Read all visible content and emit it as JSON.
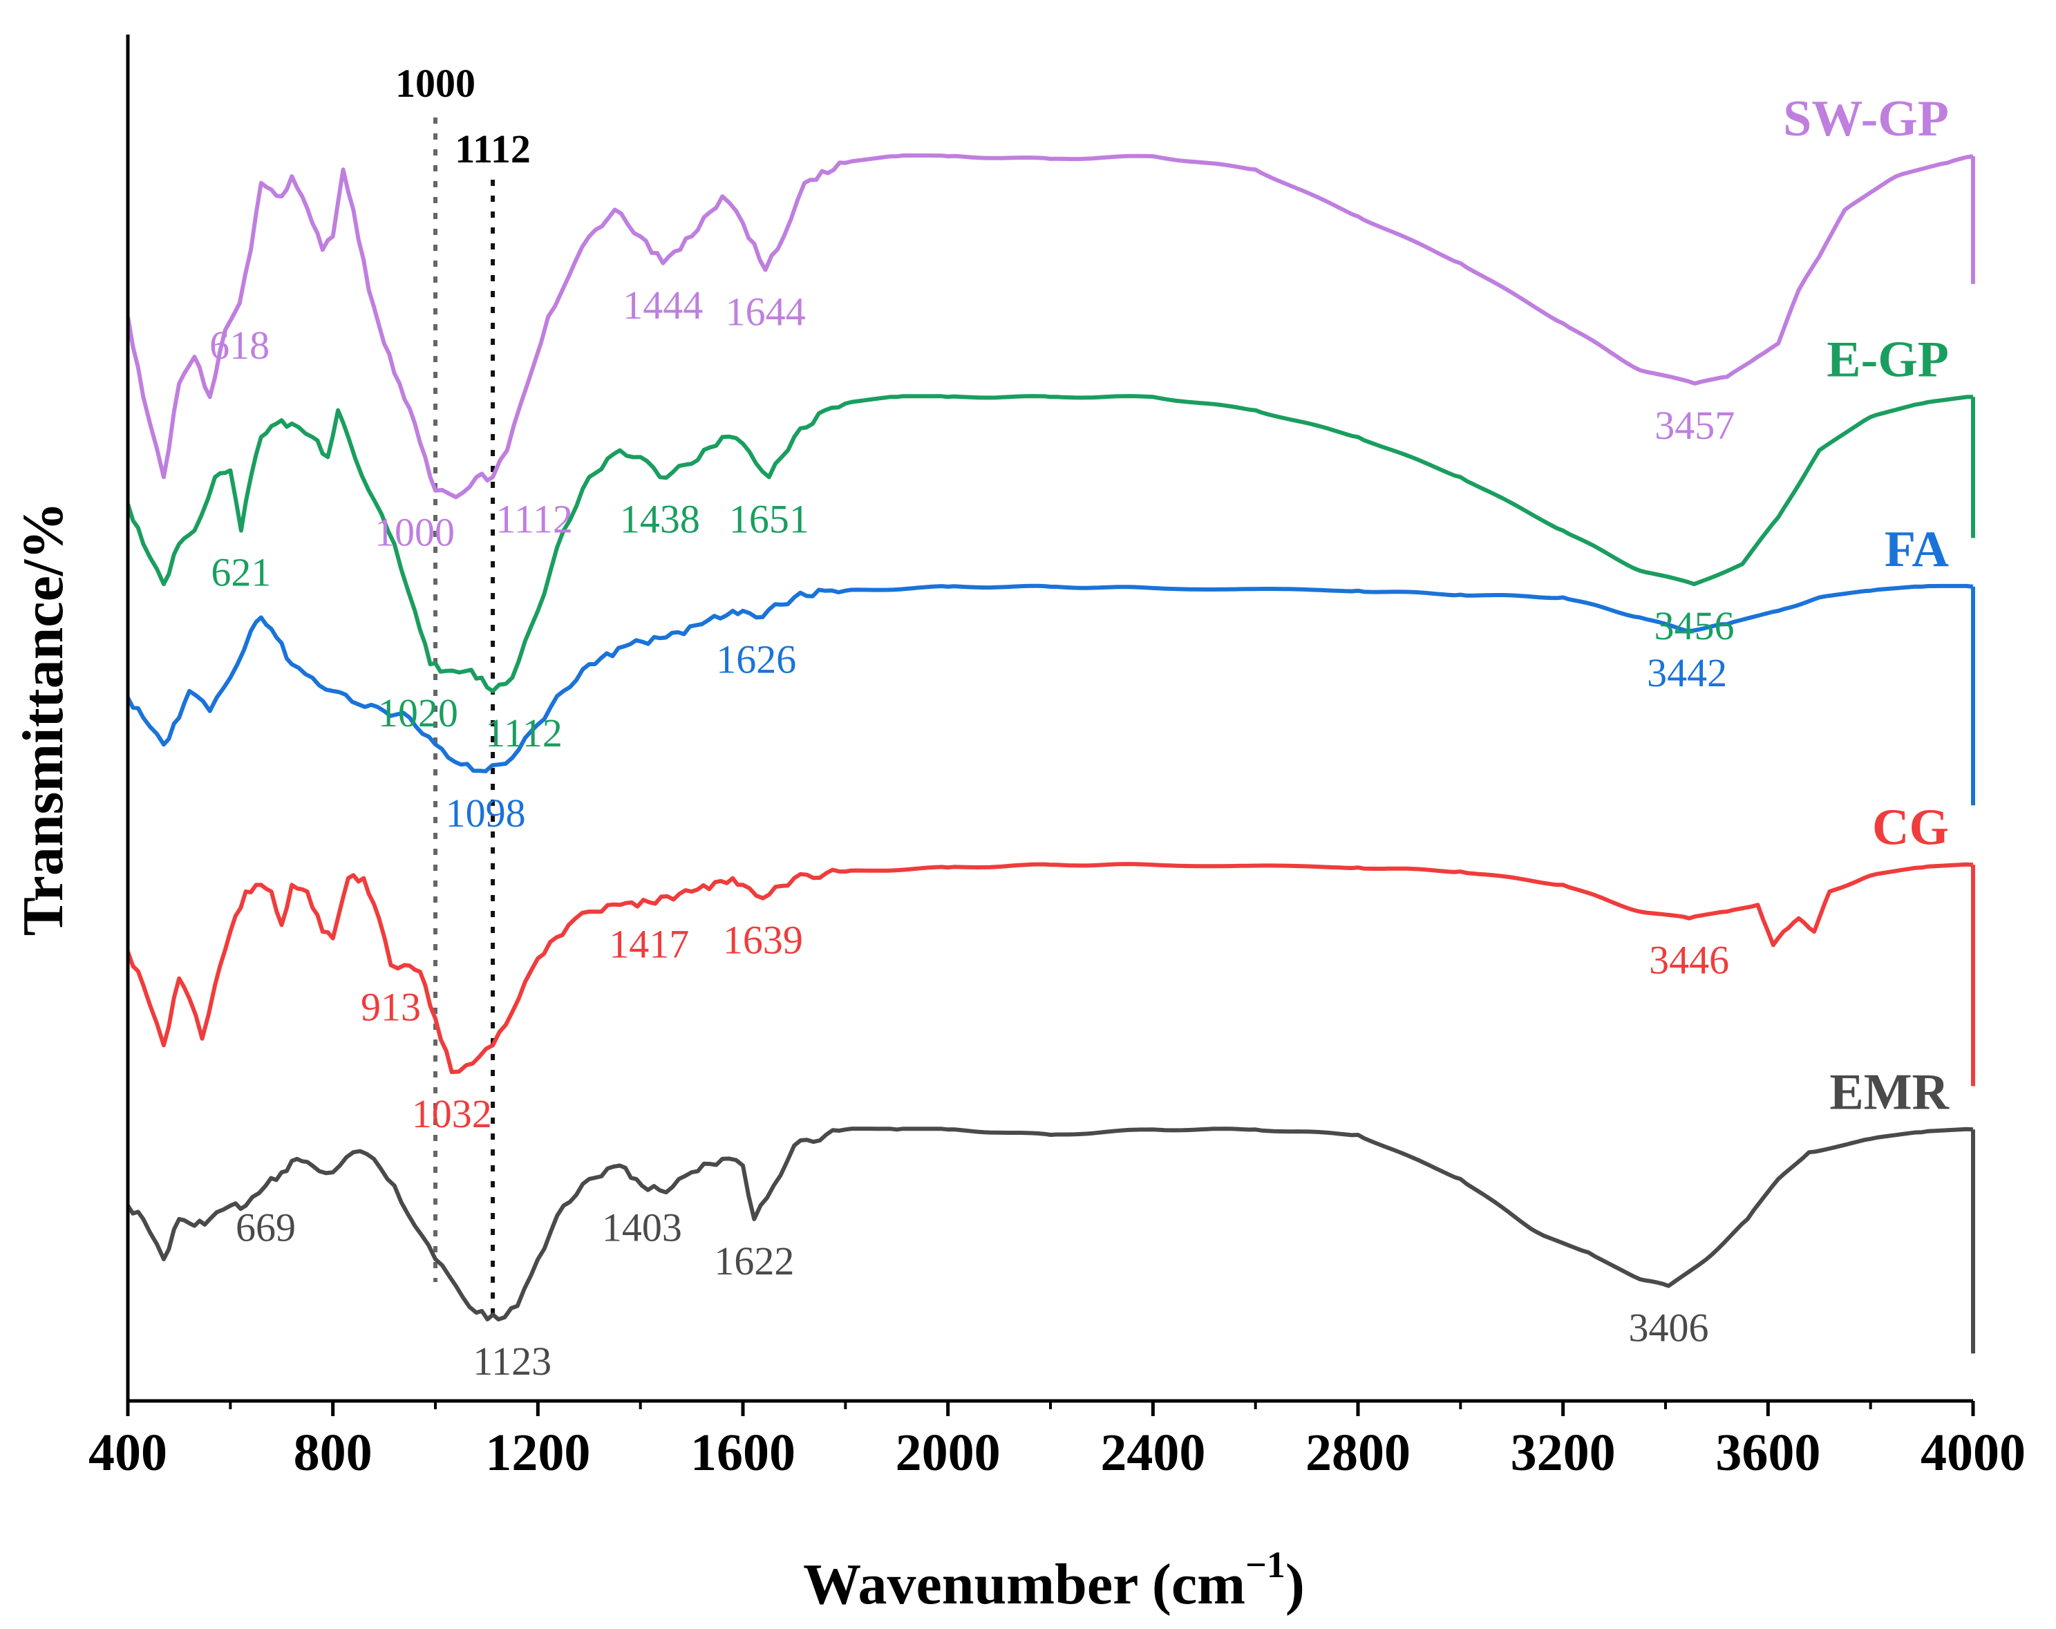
{
  "chart_data": {
    "type": "line",
    "title": "",
    "xlabel": "Wavenumber (cm",
    "xlabel_sup": "−1",
    "xlabel_close": ")",
    "ylabel": "Transmittance/%",
    "xlim": [
      400,
      4000
    ],
    "x_ticks": [
      "400",
      "800",
      "1200",
      "1600",
      "2000",
      "2400",
      "2800",
      "3200",
      "3600",
      "4000"
    ],
    "y_ticks_shown": false,
    "reference_lines": [
      {
        "x": 1000,
        "label": "1000"
      },
      {
        "x": 1112,
        "label": "1112"
      }
    ],
    "series": [
      {
        "name": "SW-GP",
        "color": "#bf7fdf",
        "offset": 8.2,
        "points": [
          [
            400,
            7.8
          ],
          [
            430,
            7.2
          ],
          [
            470,
            6.6
          ],
          [
            500,
            7.3
          ],
          [
            530,
            7.5
          ],
          [
            560,
            7.2
          ],
          [
            590,
            7.7
          ],
          [
            618,
            7.9
          ],
          [
            640,
            8.3
          ],
          [
            660,
            8.8
          ],
          [
            680,
            8.75
          ],
          [
            700,
            8.7
          ],
          [
            720,
            8.85
          ],
          [
            740,
            8.7
          ],
          [
            760,
            8.5
          ],
          [
            780,
            8.3
          ],
          [
            800,
            8.4
          ],
          [
            820,
            8.9
          ],
          [
            840,
            8.6
          ],
          [
            870,
            8.0
          ],
          [
            900,
            7.6
          ],
          [
            930,
            7.3
          ],
          [
            960,
            7.0
          ],
          [
            990,
            6.6
          ],
          [
            1000,
            6.5
          ],
          [
            1040,
            6.45
          ],
          [
            1080,
            6.6
          ],
          [
            1112,
            6.6
          ],
          [
            1140,
            6.8
          ],
          [
            1180,
            7.3
          ],
          [
            1220,
            7.8
          ],
          [
            1260,
            8.1
          ],
          [
            1300,
            8.4
          ],
          [
            1350,
            8.6
          ],
          [
            1400,
            8.4
          ],
          [
            1444,
            8.2
          ],
          [
            1500,
            8.4
          ],
          [
            1560,
            8.7
          ],
          [
            1600,
            8.5
          ],
          [
            1644,
            8.15
          ],
          [
            1680,
            8.4
          ],
          [
            1720,
            8.8
          ],
          [
            1800,
            8.95
          ],
          [
            1900,
            9.0
          ],
          [
            2000,
            9.0
          ],
          [
            2200,
            8.98
          ],
          [
            2400,
            9.0
          ],
          [
            2600,
            8.9
          ],
          [
            2800,
            8.55
          ],
          [
            3000,
            8.2
          ],
          [
            3200,
            7.75
          ],
          [
            3350,
            7.4
          ],
          [
            3457,
            7.3
          ],
          [
            3520,
            7.35
          ],
          [
            3580,
            7.5
          ],
          [
            3620,
            7.6
          ],
          [
            3660,
            8.0
          ],
          [
            3700,
            8.25
          ],
          [
            3750,
            8.6
          ],
          [
            3850,
            8.85
          ],
          [
            3950,
            8.95
          ],
          [
            4000,
            9.0
          ]
        ]
      },
      {
        "name": "E-GP",
        "color": "#1a9e5f",
        "offset": 6.3,
        "points": [
          [
            400,
            6.4
          ],
          [
            430,
            6.1
          ],
          [
            470,
            5.8
          ],
          [
            500,
            6.1
          ],
          [
            530,
            6.2
          ],
          [
            570,
            6.6
          ],
          [
            600,
            6.65
          ],
          [
            621,
            6.2
          ],
          [
            640,
            6.6
          ],
          [
            660,
            6.9
          ],
          [
            690,
            7.0
          ],
          [
            720,
            7.0
          ],
          [
            760,
            6.9
          ],
          [
            790,
            6.75
          ],
          [
            810,
            7.1
          ],
          [
            830,
            6.9
          ],
          [
            870,
            6.5
          ],
          [
            920,
            6.1
          ],
          [
            960,
            5.6
          ],
          [
            990,
            5.2
          ],
          [
            1020,
            5.15
          ],
          [
            1060,
            5.15
          ],
          [
            1090,
            5.1
          ],
          [
            1112,
            5.0
          ],
          [
            1150,
            5.1
          ],
          [
            1200,
            5.6
          ],
          [
            1250,
            6.2
          ],
          [
            1300,
            6.6
          ],
          [
            1360,
            6.8
          ],
          [
            1400,
            6.75
          ],
          [
            1438,
            6.6
          ],
          [
            1500,
            6.7
          ],
          [
            1560,
            6.9
          ],
          [
            1600,
            6.85
          ],
          [
            1651,
            6.6
          ],
          [
            1700,
            6.9
          ],
          [
            1760,
            7.1
          ],
          [
            1800,
            7.15
          ],
          [
            1900,
            7.2
          ],
          [
            2000,
            7.2
          ],
          [
            2200,
            7.2
          ],
          [
            2400,
            7.2
          ],
          [
            2600,
            7.1
          ],
          [
            2800,
            6.9
          ],
          [
            3000,
            6.6
          ],
          [
            3200,
            6.2
          ],
          [
            3350,
            5.9
          ],
          [
            3456,
            5.8
          ],
          [
            3550,
            5.95
          ],
          [
            3620,
            6.3
          ],
          [
            3700,
            6.8
          ],
          [
            3800,
            7.05
          ],
          [
            3900,
            7.15
          ],
          [
            4000,
            7.2
          ]
        ]
      },
      {
        "name": "FA",
        "color": "#1a73d9",
        "offset": 4.3,
        "points": [
          [
            400,
            4.95
          ],
          [
            430,
            4.8
          ],
          [
            470,
            4.6
          ],
          [
            500,
            4.8
          ],
          [
            520,
            5.0
          ],
          [
            560,
            4.85
          ],
          [
            600,
            5.1
          ],
          [
            640,
            5.45
          ],
          [
            660,
            5.55
          ],
          [
            690,
            5.4
          ],
          [
            720,
            5.2
          ],
          [
            760,
            5.1
          ],
          [
            800,
            5.0
          ],
          [
            850,
            4.9
          ],
          [
            900,
            4.85
          ],
          [
            950,
            4.8
          ],
          [
            1000,
            4.6
          ],
          [
            1050,
            4.45
          ],
          [
            1098,
            4.4
          ],
          [
            1150,
            4.5
          ],
          [
            1200,
            4.75
          ],
          [
            1250,
            5.0
          ],
          [
            1300,
            5.2
          ],
          [
            1380,
            5.35
          ],
          [
            1450,
            5.4
          ],
          [
            1520,
            5.5
          ],
          [
            1580,
            5.6
          ],
          [
            1600,
            5.6
          ],
          [
            1626,
            5.55
          ],
          [
            1700,
            5.7
          ],
          [
            1760,
            5.75
          ],
          [
            1800,
            5.75
          ],
          [
            2000,
            5.78
          ],
          [
            2200,
            5.78
          ],
          [
            2400,
            5.77
          ],
          [
            2800,
            5.75
          ],
          [
            3000,
            5.72
          ],
          [
            3200,
            5.7
          ],
          [
            3350,
            5.55
          ],
          [
            3442,
            5.45
          ],
          [
            3520,
            5.5
          ],
          [
            3620,
            5.6
          ],
          [
            3700,
            5.7
          ],
          [
            3800,
            5.75
          ],
          [
            3900,
            5.78
          ],
          [
            4000,
            5.78
          ]
        ]
      },
      {
        "name": "CG",
        "color": "#f03c3c",
        "offset": 2.2,
        "points": [
          [
            400,
            3.05
          ],
          [
            430,
            2.8
          ],
          [
            470,
            2.35
          ],
          [
            500,
            2.85
          ],
          [
            520,
            2.7
          ],
          [
            545,
            2.4
          ],
          [
            570,
            2.8
          ],
          [
            600,
            3.2
          ],
          [
            630,
            3.5
          ],
          [
            660,
            3.55
          ],
          [
            680,
            3.5
          ],
          [
            700,
            3.25
          ],
          [
            720,
            3.55
          ],
          [
            750,
            3.5
          ],
          [
            780,
            3.2
          ],
          [
            800,
            3.15
          ],
          [
            830,
            3.6
          ],
          [
            860,
            3.6
          ],
          [
            890,
            3.3
          ],
          [
            913,
            2.95
          ],
          [
            940,
            2.95
          ],
          [
            970,
            2.9
          ],
          [
            1000,
            2.55
          ],
          [
            1032,
            2.15
          ],
          [
            1060,
            2.2
          ],
          [
            1112,
            2.35
          ],
          [
            1150,
            2.6
          ],
          [
            1200,
            3.0
          ],
          [
            1260,
            3.25
          ],
          [
            1300,
            3.35
          ],
          [
            1360,
            3.4
          ],
          [
            1417,
            3.42
          ],
          [
            1500,
            3.5
          ],
          [
            1580,
            3.6
          ],
          [
            1600,
            3.55
          ],
          [
            1639,
            3.45
          ],
          [
            1700,
            3.6
          ],
          [
            1800,
            3.65
          ],
          [
            2000,
            3.68
          ],
          [
            2200,
            3.7
          ],
          [
            2400,
            3.7
          ],
          [
            2800,
            3.68
          ],
          [
            3000,
            3.65
          ],
          [
            3200,
            3.55
          ],
          [
            3350,
            3.35
          ],
          [
            3446,
            3.3
          ],
          [
            3520,
            3.35
          ],
          [
            3580,
            3.4
          ],
          [
            3610,
            3.1
          ],
          [
            3630,
            3.2
          ],
          [
            3660,
            3.3
          ],
          [
            3690,
            3.2
          ],
          [
            3720,
            3.5
          ],
          [
            3800,
            3.62
          ],
          [
            3900,
            3.68
          ],
          [
            4000,
            3.7
          ]
        ]
      },
      {
        "name": "EMR",
        "color": "#4a4a4a",
        "offset": 0.2,
        "points": [
          [
            400,
            1.15
          ],
          [
            430,
            1.05
          ],
          [
            470,
            0.75
          ],
          [
            500,
            1.05
          ],
          [
            530,
            1.0
          ],
          [
            560,
            1.05
          ],
          [
            600,
            1.15
          ],
          [
            630,
            1.15
          ],
          [
            669,
            1.3
          ],
          [
            700,
            1.4
          ],
          [
            730,
            1.5
          ],
          [
            760,
            1.45
          ],
          [
            800,
            1.4
          ],
          [
            840,
            1.55
          ],
          [
            880,
            1.5
          ],
          [
            920,
            1.3
          ],
          [
            960,
            1.0
          ],
          [
            1000,
            0.75
          ],
          [
            1040,
            0.55
          ],
          [
            1080,
            0.35
          ],
          [
            1123,
            0.3
          ],
          [
            1160,
            0.4
          ],
          [
            1200,
            0.75
          ],
          [
            1250,
            1.15
          ],
          [
            1300,
            1.35
          ],
          [
            1360,
            1.45
          ],
          [
            1403,
            1.3
          ],
          [
            1450,
            1.25
          ],
          [
            1500,
            1.4
          ],
          [
            1560,
            1.5
          ],
          [
            1600,
            1.45
          ],
          [
            1622,
            1.05
          ],
          [
            1660,
            1.3
          ],
          [
            1700,
            1.6
          ],
          [
            1800,
            1.72
          ],
          [
            1900,
            1.72
          ],
          [
            2000,
            1.72
          ],
          [
            2200,
            1.68
          ],
          [
            2400,
            1.72
          ],
          [
            2600,
            1.72
          ],
          [
            2800,
            1.68
          ],
          [
            3000,
            1.35
          ],
          [
            3150,
            0.95
          ],
          [
            3250,
            0.8
          ],
          [
            3350,
            0.6
          ],
          [
            3406,
            0.55
          ],
          [
            3480,
            0.75
          ],
          [
            3560,
            1.05
          ],
          [
            3620,
            1.35
          ],
          [
            3680,
            1.55
          ],
          [
            3800,
            1.65
          ],
          [
            3900,
            1.7
          ],
          [
            4000,
            1.72
          ]
        ]
      }
    ],
    "peak_labels": [
      {
        "series": "SW-GP",
        "text": "618",
        "x": 618
      },
      {
        "series": "SW-GP",
        "text": "1000",
        "x": 1000
      },
      {
        "series": "SW-GP",
        "text": "1112",
        "x": 1112
      },
      {
        "series": "SW-GP",
        "text": "1444",
        "x": 1444
      },
      {
        "series": "SW-GP",
        "text": "1644",
        "x": 1644
      },
      {
        "series": "SW-GP",
        "text": "3457",
        "x": 3457
      },
      {
        "series": "E-GP",
        "text": "621",
        "x": 621
      },
      {
        "series": "E-GP",
        "text": "1020",
        "x": 1020
      },
      {
        "series": "E-GP",
        "text": "1112",
        "x": 1112
      },
      {
        "series": "E-GP",
        "text": "1438",
        "x": 1438
      },
      {
        "series": "E-GP",
        "text": "1651",
        "x": 1651
      },
      {
        "series": "E-GP",
        "text": "3456",
        "x": 3456
      },
      {
        "series": "FA",
        "text": "1098",
        "x": 1098
      },
      {
        "series": "FA",
        "text": "1626",
        "x": 1626
      },
      {
        "series": "FA",
        "text": "3442",
        "x": 3442
      },
      {
        "series": "CG",
        "text": "913",
        "x": 913
      },
      {
        "series": "CG",
        "text": "1032",
        "x": 1032
      },
      {
        "series": "CG",
        "text": "1417",
        "x": 1417
      },
      {
        "series": "CG",
        "text": "1639",
        "x": 1639
      },
      {
        "series": "CG",
        "text": "3446",
        "x": 3446
      },
      {
        "series": "EMR",
        "text": "669",
        "x": 669
      },
      {
        "series": "EMR",
        "text": "1123",
        "x": 1123
      },
      {
        "series": "EMR",
        "text": "1403",
        "x": 1403
      },
      {
        "series": "EMR",
        "text": "1622",
        "x": 1622
      },
      {
        "series": "EMR",
        "text": "3406",
        "x": 3406
      }
    ]
  }
}
